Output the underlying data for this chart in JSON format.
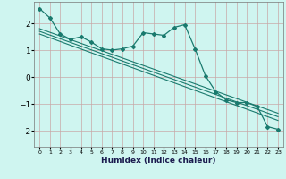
{
  "title": "",
  "xlabel": "Humidex (Indice chaleur)",
  "ylabel": "",
  "bg_color": "#cff5f0",
  "grid_color": "#c8a8a8",
  "line_color": "#1a7a6e",
  "xlim": [
    -0.5,
    23.5
  ],
  "ylim": [
    -2.6,
    2.8
  ],
  "xticks": [
    0,
    1,
    2,
    3,
    4,
    5,
    6,
    7,
    8,
    9,
    10,
    11,
    12,
    13,
    14,
    15,
    16,
    17,
    18,
    19,
    20,
    21,
    22,
    23
  ],
  "yticks": [
    -2,
    -1,
    0,
    1,
    2
  ],
  "main_x": [
    0,
    1,
    2,
    3,
    4,
    5,
    6,
    7,
    8,
    9,
    10,
    11,
    12,
    13,
    14,
    15,
    16,
    17,
    18,
    19,
    20,
    21,
    22,
    23
  ],
  "main_y": [
    2.55,
    2.2,
    1.6,
    1.4,
    1.5,
    1.3,
    1.05,
    1.0,
    1.05,
    1.15,
    1.65,
    1.6,
    1.55,
    1.85,
    1.95,
    1.05,
    0.05,
    -0.55,
    -0.85,
    -0.95,
    -0.95,
    -1.1,
    -1.85,
    -1.95
  ],
  "line1_x": [
    0,
    23
  ],
  "line1_y": [
    1.8,
    -1.35
  ],
  "line2_x": [
    0,
    23
  ],
  "line2_y": [
    1.7,
    -1.48
  ],
  "line3_x": [
    0,
    23
  ],
  "line3_y": [
    1.6,
    -1.62
  ]
}
